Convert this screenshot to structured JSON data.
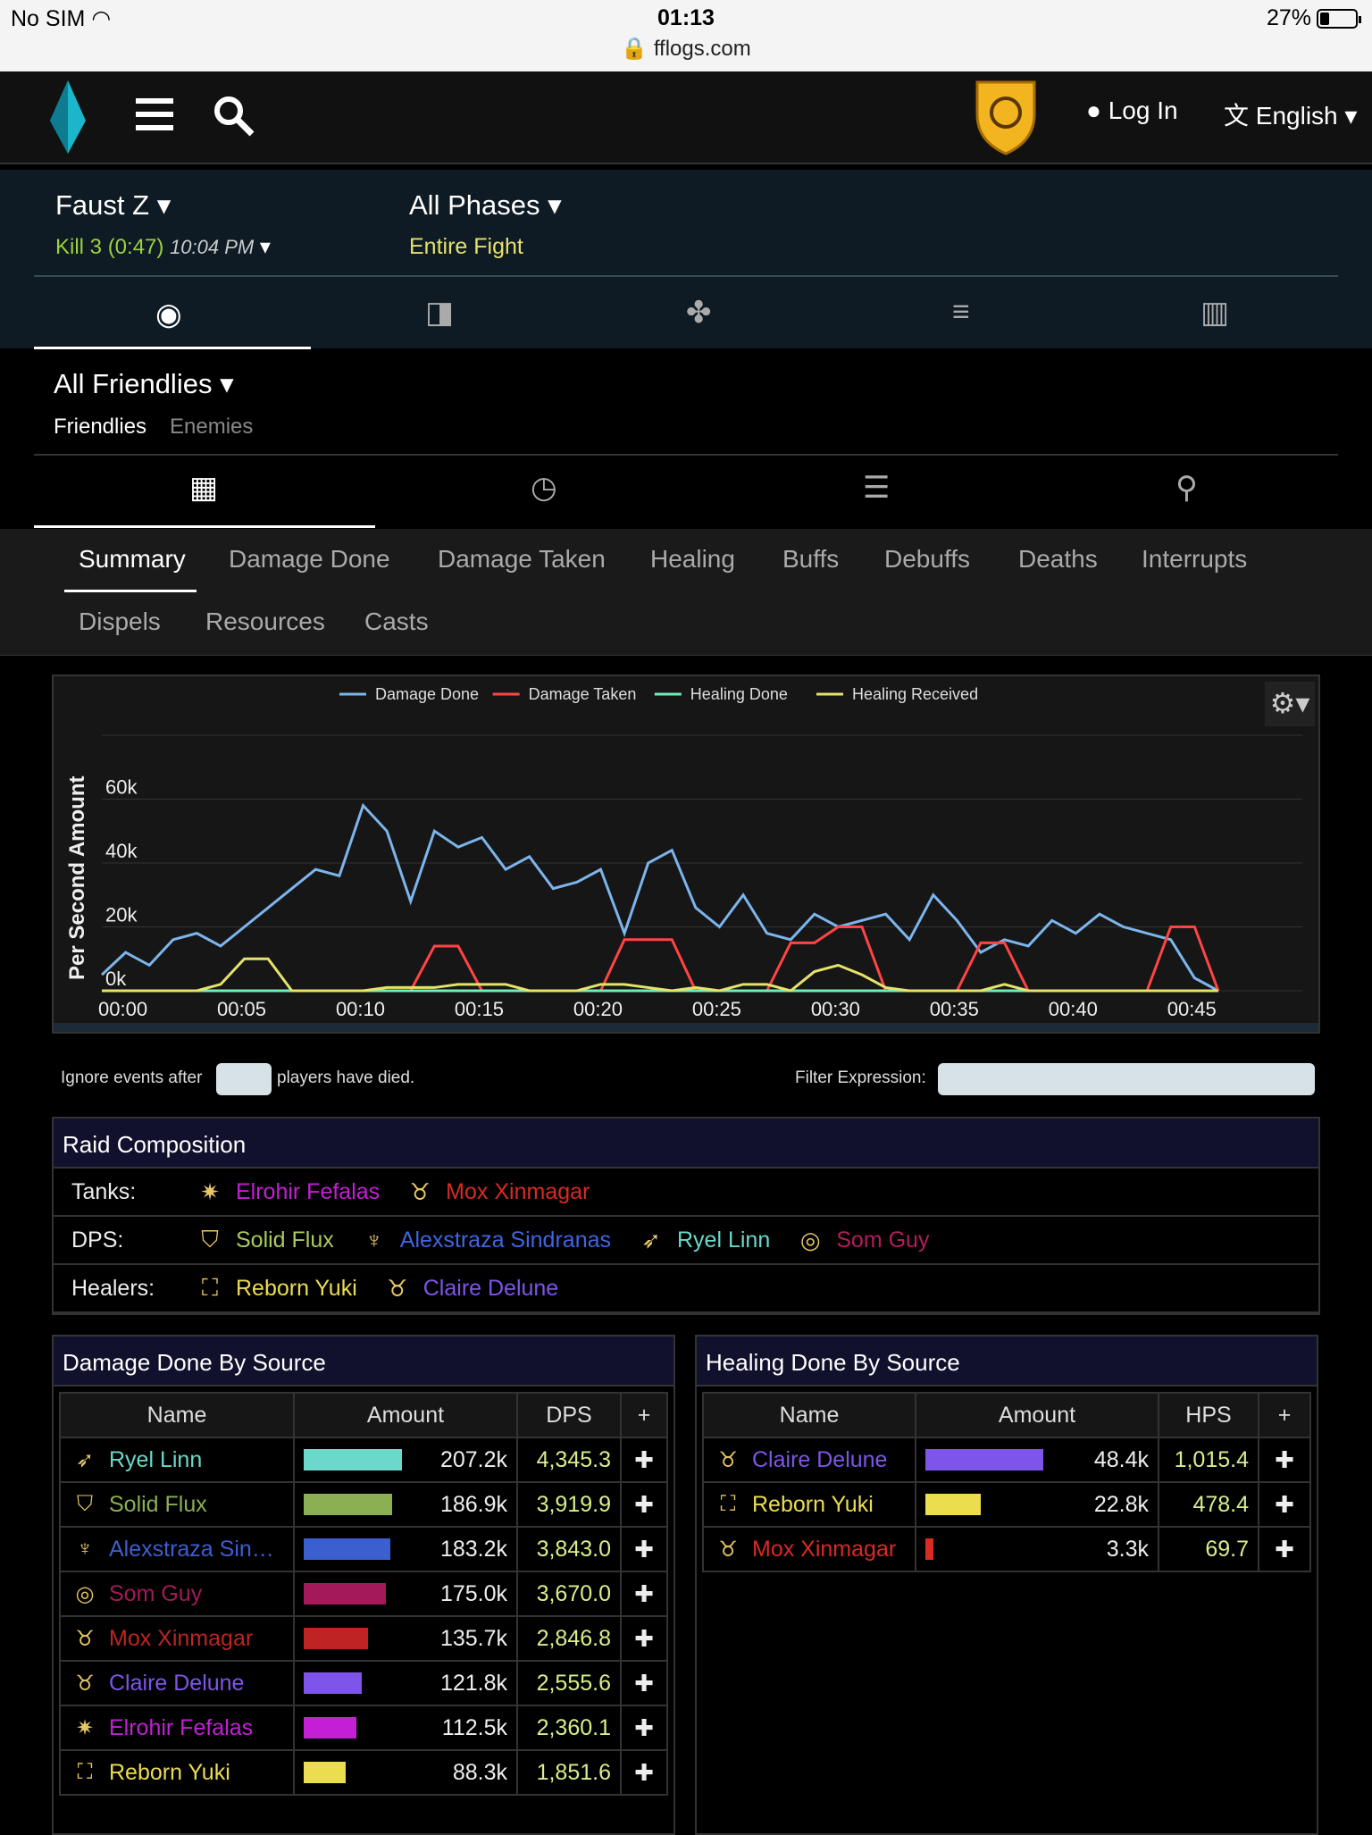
{
  "status": {
    "carrier": "No SIM",
    "time": "01:13",
    "url": "fflogs.com",
    "battery": "27%"
  },
  "nav": {
    "login": "Log In",
    "language": "English"
  },
  "fight": {
    "encounter": "Faust Z",
    "kill": "Kill 3 (0:47)",
    "time": "10:04 PM",
    "phase": "All Phases",
    "phase_sub": "Entire Fight"
  },
  "actors": {
    "title": "All Friendlies",
    "tab_friendlies": "Friendlies",
    "tab_enemies": "Enemies"
  },
  "tabs": [
    "Summary",
    "Damage Done",
    "Damage Taken",
    "Healing",
    "Buffs",
    "Debuffs",
    "Deaths",
    "Interrupts",
    "Dispels",
    "Resources",
    "Casts"
  ],
  "chart_data": {
    "type": "line",
    "ylabel": "Per Second Amount",
    "ylim": [
      0,
      80000
    ],
    "yticks": [
      "0k",
      "20k",
      "40k",
      "60k"
    ],
    "xticks": [
      "00:00",
      "00:05",
      "00:10",
      "00:15",
      "00:20",
      "00:25",
      "00:30",
      "00:35",
      "00:40",
      "00:45"
    ],
    "x": [
      0,
      1,
      2,
      3,
      4,
      5,
      6,
      7,
      8,
      9,
      10,
      11,
      12,
      13,
      14,
      15,
      16,
      17,
      18,
      19,
      20,
      21,
      22,
      23,
      24,
      25,
      26,
      27,
      28,
      29,
      30,
      31,
      32,
      33,
      34,
      35,
      36,
      37,
      38,
      39,
      40,
      41,
      42,
      43,
      44,
      45,
      46,
      47
    ],
    "series": [
      {
        "name": "Damage Done",
        "color": "#7cb5ec",
        "values": [
          5000,
          12000,
          8000,
          16000,
          18000,
          14000,
          20000,
          26000,
          32000,
          38000,
          36000,
          58000,
          50000,
          28000,
          50000,
          45000,
          48000,
          38000,
          42000,
          32000,
          34000,
          38000,
          18000,
          40000,
          44000,
          26000,
          20000,
          30000,
          18000,
          16000,
          24000,
          20000,
          22000,
          24000,
          16000,
          30000,
          22000,
          12000,
          16000,
          14000,
          22000,
          18000,
          24000,
          20000,
          18000,
          16000,
          4000,
          0
        ]
      },
      {
        "name": "Damage Taken",
        "color": "#f44",
        "values": [
          0,
          0,
          0,
          0,
          0,
          0,
          0,
          0,
          0,
          0,
          0,
          0,
          0,
          0,
          14000,
          14000,
          0,
          0,
          0,
          0,
          0,
          0,
          16000,
          16000,
          16000,
          0,
          0,
          0,
          0,
          15000,
          15000,
          20000,
          20000,
          0,
          0,
          0,
          0,
          15000,
          15000,
          0,
          0,
          0,
          0,
          0,
          0,
          20000,
          20000,
          0
        ]
      },
      {
        "name": "Healing Done",
        "color": "#6fefb6",
        "values": [
          0,
          0,
          0,
          0,
          0,
          0,
          0,
          0,
          0,
          0,
          0,
          0,
          0,
          0,
          0,
          0,
          0,
          0,
          0,
          0,
          0,
          0,
          0,
          0,
          0,
          0,
          0,
          0,
          0,
          0,
          0,
          0,
          0,
          0,
          0,
          0,
          0,
          0,
          0,
          0,
          0,
          0,
          0,
          0,
          0,
          0,
          0,
          0
        ]
      },
      {
        "name": "Healing Received",
        "color": "#e6e26b",
        "values": [
          0,
          0,
          0,
          0,
          0,
          2000,
          10000,
          10000,
          0,
          0,
          0,
          0,
          1000,
          1000,
          1000,
          2000,
          2000,
          2000,
          0,
          0,
          0,
          2000,
          2000,
          1000,
          0,
          1000,
          0,
          2000,
          2000,
          0,
          6000,
          8000,
          5000,
          1000,
          0,
          0,
          0,
          0,
          2000,
          0,
          0,
          0,
          0,
          0,
          0,
          0,
          0,
          0
        ]
      }
    ],
    "legend": "top"
  },
  "filters": {
    "ignore_before": "Ignore events after",
    "ignore_after": "players have died.",
    "expression": "Filter Expression:"
  },
  "raid": {
    "title": "Raid Composition",
    "rows": [
      {
        "label": "Tanks:",
        "members": [
          {
            "name": "Elrohir Fefalas",
            "color": "#c41fd6",
            "icon": "✷"
          },
          {
            "name": "Mox Xinmagar",
            "color": "#d92a23",
            "icon": "♉"
          }
        ]
      },
      {
        "label": "DPS:",
        "members": [
          {
            "name": "Solid Flux",
            "color": "#a8cb5d",
            "icon": "⛉"
          },
          {
            "name": "Alexstraza Sindranas",
            "color": "#4165e0",
            "icon": "♆"
          },
          {
            "name": "Ryel Linn",
            "color": "#6bd8cb",
            "icon": "➶"
          },
          {
            "name": "Som Guy",
            "color": "#b31d5c",
            "icon": "◎"
          }
        ]
      },
      {
        "label": "Healers:",
        "members": [
          {
            "name": "Reborn Yuki",
            "color": "#ecdd4f",
            "icon": "⛶"
          },
          {
            "name": "Claire Delune",
            "color": "#7e55e8",
            "icon": "♉"
          }
        ]
      }
    ]
  },
  "damage": {
    "title": "Damage Done By Source",
    "cols": [
      "Name",
      "Amount",
      "DPS",
      "+"
    ],
    "rows": [
      {
        "name": "Ryel Linn",
        "color": "#6bd8cb",
        "icon": "➶",
        "amount": "207.2k",
        "rate": "4,345.3",
        "fill": 1.0
      },
      {
        "name": "Solid Flux",
        "color": "#8ab052",
        "icon": "⛉",
        "amount": "186.9k",
        "rate": "3,919.9",
        "fill": 0.9
      },
      {
        "name": "Alexstraza Sin…",
        "color": "#3c5fd0",
        "icon": "♆",
        "amount": "183.2k",
        "rate": "3,843.0",
        "fill": 0.88
      },
      {
        "name": "Som Guy",
        "color": "#a3195a",
        "icon": "◎",
        "amount": "175.0k",
        "rate": "3,670.0",
        "fill": 0.84
      },
      {
        "name": "Mox Xinmagar",
        "color": "#c02323",
        "icon": "♉",
        "amount": "135.7k",
        "rate": "2,846.8",
        "fill": 0.65
      },
      {
        "name": "Claire Delune",
        "color": "#7e55e8",
        "icon": "♉",
        "amount": "121.8k",
        "rate": "2,555.6",
        "fill": 0.59
      },
      {
        "name": "Elrohir Fefalas",
        "color": "#c41fd6",
        "icon": "✷",
        "amount": "112.5k",
        "rate": "2,360.1",
        "fill": 0.54
      },
      {
        "name": "Reborn Yuki",
        "color": "#ecdd4f",
        "icon": "⛶",
        "amount": "88.3k",
        "rate": "1,851.6",
        "fill": 0.43
      }
    ]
  },
  "healing": {
    "title": "Healing Done By Source",
    "cols": [
      "Name",
      "Amount",
      "HPS",
      "+"
    ],
    "rows": [
      {
        "name": "Claire Delune",
        "color": "#7e55e8",
        "icon": "♉",
        "amount": "48.4k",
        "rate": "1,015.4",
        "fill": 1.0
      },
      {
        "name": "Reborn Yuki",
        "color": "#ecdd4f",
        "icon": "⛶",
        "amount": "22.8k",
        "rate": "478.4",
        "fill": 0.47
      },
      {
        "name": "Mox Xinmagar",
        "color": "#d92a23",
        "icon": "♉",
        "amount": "3.3k",
        "rate": "69.7",
        "fill": 0.07
      }
    ]
  }
}
